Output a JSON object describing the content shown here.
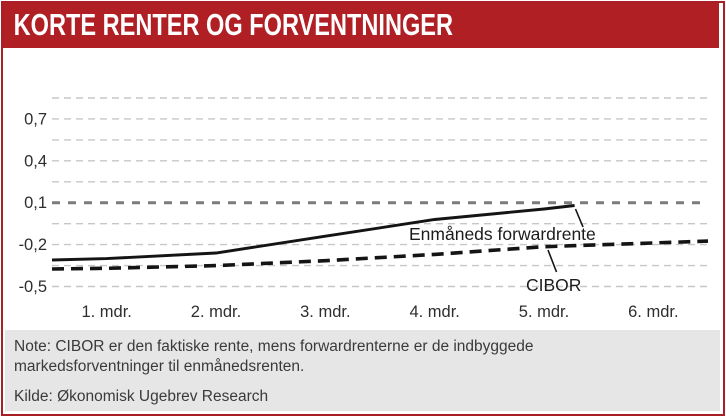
{
  "header": {
    "title": "KORTE RENTER OG FORVENTNINGER"
  },
  "footer": {
    "note": "Note: CIBOR er den faktiske rente, mens forwardrenterne er de indbyggede markedsforventninger til enmånedsrenten.",
    "source": "Kilde: Økonomisk Ugebrev Research"
  },
  "colors": {
    "accent_red": "#b01f24",
    "note_background": "#e6e6e6",
    "grid_light": "#c9c6c6",
    "grid_bold": "#7c7c7c",
    "line_black": "#141414",
    "text": "#2e2e2e"
  },
  "chart_data": {
    "type": "line",
    "categories": [
      "1. mdr.",
      "2. mdr.",
      "3. mdr.",
      "4. mdr.",
      "5. mdr.",
      "6. mdr."
    ],
    "xlabel": "",
    "ylabel": "",
    "ylim": [
      -0.5,
      0.85
    ],
    "grid": {
      "visible": true,
      "step": 0.15,
      "style": "dashed",
      "bold_line_at": 0.1
    },
    "y_ticks": [
      {
        "value": 0.7,
        "label": "0,7"
      },
      {
        "value": 0.4,
        "label": "0,4"
      },
      {
        "value": 0.1,
        "label": "0,1"
      },
      {
        "value": -0.2,
        "label": "-0,2"
      },
      {
        "value": -0.5,
        "label": "-0,5"
      }
    ],
    "legend_position": "inline-labels-with-leader-lines",
    "series": [
      {
        "name": "Enmåneds forwardrente",
        "line_style": "solid",
        "color": "#141414",
        "points": [
          [
            0.5,
            -0.31
          ],
          [
            1,
            -0.3
          ],
          [
            2,
            -0.26
          ],
          [
            3,
            -0.14
          ],
          [
            4,
            -0.02
          ],
          [
            5,
            0.055
          ],
          [
            5.28,
            0.08
          ]
        ]
      },
      {
        "name": "CIBOR",
        "line_style": "dashed",
        "color": "#141414",
        "points": [
          [
            0.5,
            -0.375
          ],
          [
            1,
            -0.37
          ],
          [
            2,
            -0.35
          ],
          [
            3,
            -0.315
          ],
          [
            4,
            -0.27
          ],
          [
            5,
            -0.215
          ],
          [
            6.5,
            -0.175
          ]
        ]
      }
    ]
  }
}
